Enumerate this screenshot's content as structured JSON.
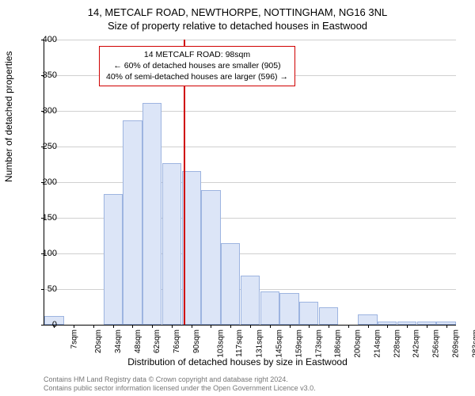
{
  "title_line1": "14, METCALF ROAD, NEWTHORPE, NOTTINGHAM, NG16 3NL",
  "title_line2": "Size of property relative to detached houses in Eastwood",
  "ylabel": "Number of detached properties",
  "xlabel": "Distribution of detached houses by size in Eastwood",
  "chart": {
    "type": "histogram",
    "ylim": [
      0,
      400
    ],
    "ytick_step": 50,
    "bar_fill": "#dce5f7",
    "bar_border": "#9db4e0",
    "grid_color": "#d0d0d0",
    "background_color": "#ffffff",
    "bar_width_ratio": 0.98,
    "categories": [
      "7sqm",
      "20sqm",
      "34sqm",
      "48sqm",
      "62sqm",
      "76sqm",
      "90sqm",
      "103sqm",
      "117sqm",
      "131sqm",
      "145sqm",
      "159sqm",
      "173sqm",
      "186sqm",
      "200sqm",
      "214sqm",
      "228sqm",
      "242sqm",
      "256sqm",
      "269sqm",
      "283sqm"
    ],
    "values": [
      12,
      0,
      0,
      183,
      287,
      311,
      227,
      216,
      189,
      114,
      69,
      47,
      44,
      32,
      24,
      0,
      15,
      5,
      5,
      5,
      5
    ],
    "reference_line": {
      "color": "#d00000",
      "position_index": 6.6
    }
  },
  "annotation": {
    "line1": "14 METCALF ROAD: 98sqm",
    "line2": "← 60% of detached houses are smaller (905)",
    "line3": "40% of semi-detached houses are larger (596) →",
    "border_color": "#d00000",
    "fontsize": 10.5
  },
  "footer": {
    "line1": "Contains HM Land Registry data © Crown copyright and database right 2024.",
    "line2": "Contains public sector information licensed under the Open Government Licence v3.0."
  }
}
